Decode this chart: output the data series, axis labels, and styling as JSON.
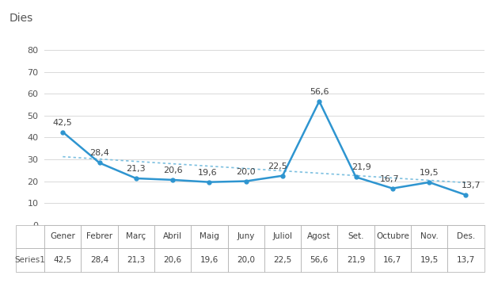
{
  "categories": [
    "Gener",
    "Febrer",
    "Març",
    "Abril",
    "Maig",
    "Juny",
    "Juliol",
    "Agost",
    "Set.",
    "Octubre",
    "Nov.",
    "Des."
  ],
  "values": [
    42.5,
    28.4,
    21.3,
    20.6,
    19.6,
    20.0,
    22.5,
    56.6,
    21.9,
    16.7,
    19.5,
    13.7
  ],
  "series_label": "Series1",
  "title": "Dies",
  "ylim": [
    0,
    90
  ],
  "yticks": [
    0,
    10,
    20,
    30,
    40,
    50,
    60,
    70,
    80
  ],
  "line_color": "#2E95D0",
  "trend_color": "#7DC0E0",
  "background_color": "#ffffff",
  "grid_color": "#D9D9D9",
  "label_fontsize": 8,
  "axis_fontsize": 8,
  "table_fontsize": 7.5,
  "title_fontsize": 10
}
